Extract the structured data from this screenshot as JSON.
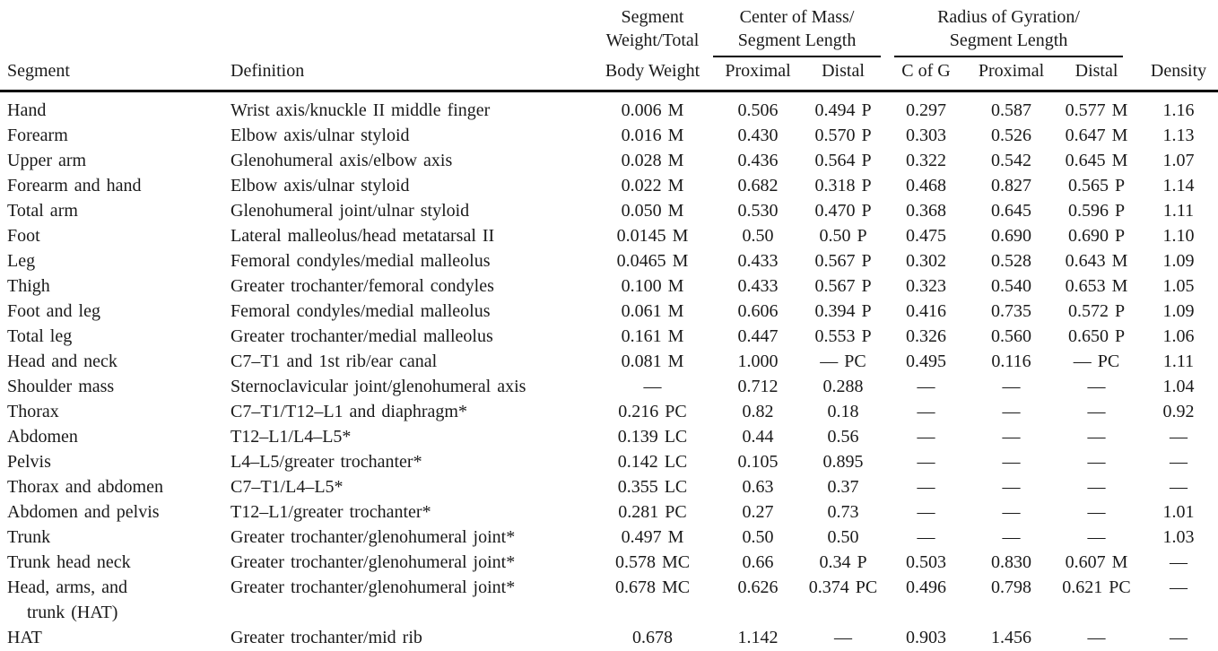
{
  "table": {
    "header": {
      "segment": "Segment",
      "definition": "Definition",
      "weight_line1": "Segment",
      "weight_line2": "Weight/Total",
      "weight_line3": "Body Weight",
      "com_group_line1": "Center of Mass/",
      "com_group_line2": "Segment Length",
      "rog_group_line1": "Radius of Gyration/",
      "rog_group_line2": "Segment Length",
      "com_proximal": "Proximal",
      "com_distal": "Distal",
      "rog_cofg": "C of G",
      "rog_proximal": "Proximal",
      "rog_distal": "Distal",
      "density": "Density"
    },
    "rows": [
      {
        "segment": "Hand",
        "definition": "Wrist axis/knuckle II middle finger",
        "weight": "0.006 M",
        "com_proximal": "0.506",
        "com_distal": "0.494 P",
        "rog_cofg": "0.297",
        "rog_proximal": "0.587",
        "rog_distal": "0.577 M",
        "density": "1.16"
      },
      {
        "segment": "Forearm",
        "definition": "Elbow axis/ulnar styloid",
        "weight": "0.016 M",
        "com_proximal": "0.430",
        "com_distal": "0.570 P",
        "rog_cofg": "0.303",
        "rog_proximal": "0.526",
        "rog_distal": "0.647 M",
        "density": "1.13"
      },
      {
        "segment": "Upper arm",
        "definition": "Glenohumeral axis/elbow axis",
        "weight": "0.028 M",
        "com_proximal": "0.436",
        "com_distal": "0.564 P",
        "rog_cofg": "0.322",
        "rog_proximal": "0.542",
        "rog_distal": "0.645 M",
        "density": "1.07"
      },
      {
        "segment": "Forearm and hand",
        "definition": "Elbow axis/ulnar styloid",
        "weight": "0.022 M",
        "com_proximal": "0.682",
        "com_distal": "0.318 P",
        "rog_cofg": "0.468",
        "rog_proximal": "0.827",
        "rog_distal": "0.565 P",
        "density": "1.14"
      },
      {
        "segment": "Total arm",
        "definition": "Glenohumeral joint/ulnar styloid",
        "weight": "0.050 M",
        "com_proximal": "0.530",
        "com_distal": "0.470 P",
        "rog_cofg": "0.368",
        "rog_proximal": "0.645",
        "rog_distal": "0.596 P",
        "density": "1.11"
      },
      {
        "segment": "Foot",
        "definition": "Lateral malleolus/head metatarsal II",
        "weight": "0.0145 M",
        "com_proximal": "0.50",
        "com_distal": "0.50 P",
        "rog_cofg": "0.475",
        "rog_proximal": "0.690",
        "rog_distal": "0.690 P",
        "density": "1.10"
      },
      {
        "segment": "Leg",
        "definition": "Femoral condyles/medial malleolus",
        "weight": "0.0465 M",
        "com_proximal": "0.433",
        "com_distal": "0.567 P",
        "rog_cofg": "0.302",
        "rog_proximal": "0.528",
        "rog_distal": "0.643 M",
        "density": "1.09"
      },
      {
        "segment": "Thigh",
        "definition": "Greater trochanter/femoral condyles",
        "weight": "0.100 M",
        "com_proximal": "0.433",
        "com_distal": "0.567 P",
        "rog_cofg": "0.323",
        "rog_proximal": "0.540",
        "rog_distal": "0.653 M",
        "density": "1.05"
      },
      {
        "segment": "Foot and leg",
        "definition": "Femoral condyles/medial malleolus",
        "weight": "0.061 M",
        "com_proximal": "0.606",
        "com_distal": "0.394 P",
        "rog_cofg": "0.416",
        "rog_proximal": "0.735",
        "rog_distal": "0.572 P",
        "density": "1.09"
      },
      {
        "segment": "Total leg",
        "definition": "Greater trochanter/medial malleolus",
        "weight": "0.161 M",
        "com_proximal": "0.447",
        "com_distal": "0.553 P",
        "rog_cofg": "0.326",
        "rog_proximal": "0.560",
        "rog_distal": "0.650 P",
        "density": "1.06"
      },
      {
        "segment": "Head and neck",
        "definition": "C7–T1 and 1st rib/ear canal",
        "weight": "0.081 M",
        "com_proximal": "1.000",
        "com_distal": "— PC",
        "rog_cofg": "0.495",
        "rog_proximal": "0.116",
        "rog_distal": "— PC",
        "density": "1.11"
      },
      {
        "segment": "Shoulder mass",
        "definition": "Sternoclavicular joint/glenohumeral axis",
        "weight": "—",
        "com_proximal": "0.712",
        "com_distal": "0.288",
        "rog_cofg": "—",
        "rog_proximal": "—",
        "rog_distal": "—",
        "density": "1.04"
      },
      {
        "segment": "Thorax",
        "definition": "C7–T1/T12–L1 and diaphragm*",
        "weight": "0.216 PC",
        "com_proximal": "0.82",
        "com_distal": "0.18",
        "rog_cofg": "—",
        "rog_proximal": "—",
        "rog_distal": "—",
        "density": "0.92"
      },
      {
        "segment": "Abdomen",
        "definition": "T12–L1/L4–L5*",
        "weight": "0.139 LC",
        "com_proximal": "0.44",
        "com_distal": "0.56",
        "rog_cofg": "—",
        "rog_proximal": "—",
        "rog_distal": "—",
        "density": "—"
      },
      {
        "segment": "Pelvis",
        "definition": "L4–L5/greater trochanter*",
        "weight": "0.142 LC",
        "com_proximal": "0.105",
        "com_distal": "0.895",
        "rog_cofg": "—",
        "rog_proximal": "—",
        "rog_distal": "—",
        "density": "—"
      },
      {
        "segment": "Thorax and abdomen",
        "definition": "C7–T1/L4–L5*",
        "weight": "0.355 LC",
        "com_proximal": "0.63",
        "com_distal": "0.37",
        "rog_cofg": "—",
        "rog_proximal": "—",
        "rog_distal": "—",
        "density": "—"
      },
      {
        "segment": "Abdomen and pelvis",
        "definition": "T12–L1/greater trochanter*",
        "weight": "0.281 PC",
        "com_proximal": "0.27",
        "com_distal": "0.73",
        "rog_cofg": "—",
        "rog_proximal": "—",
        "rog_distal": "—",
        "density": "1.01"
      },
      {
        "segment": "Trunk",
        "definition": "Greater trochanter/glenohumeral joint*",
        "weight": "0.497 M",
        "com_proximal": "0.50",
        "com_distal": "0.50",
        "rog_cofg": "—",
        "rog_proximal": "—",
        "rog_distal": "—",
        "density": "1.03"
      },
      {
        "segment": "Trunk head neck",
        "definition": "Greater trochanter/glenohumeral joint*",
        "weight": "0.578 MC",
        "com_proximal": "0.66",
        "com_distal": "0.34 P",
        "rog_cofg": "0.503",
        "rog_proximal": "0.830",
        "rog_distal": "0.607 M",
        "density": "—"
      },
      {
        "segment": "Head, arms, and",
        "segment_line2": "trunk (HAT)",
        "definition": "Greater trochanter/glenohumeral joint*",
        "weight": "0.678 MC",
        "com_proximal": "0.626",
        "com_distal": "0.374 PC",
        "rog_cofg": "0.496",
        "rog_proximal": "0.798",
        "rog_distal": "0.621 PC",
        "density": "—"
      },
      {
        "segment": "HAT",
        "definition": "Greater trochanter/mid rib",
        "weight": "0.678",
        "com_proximal": "1.142",
        "com_distal": "—",
        "rog_cofg": "0.903",
        "rog_proximal": "1.456",
        "rog_distal": "—",
        "density": "—"
      }
    ]
  }
}
